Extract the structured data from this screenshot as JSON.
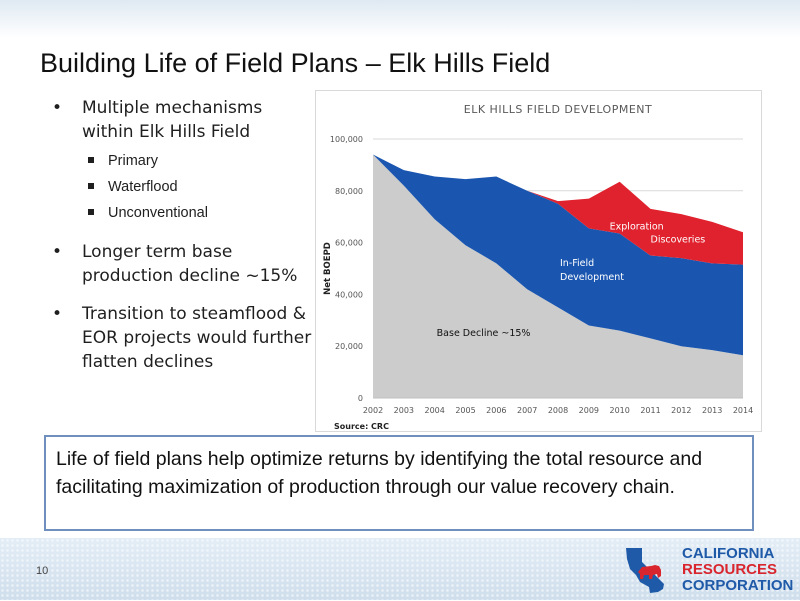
{
  "slide": {
    "title": "Building Life of Field Plans – Elk Hills Field",
    "page_number": "10"
  },
  "bullets": [
    {
      "text": "Multiple mechanisms within Elk Hills Field",
      "subitems": [
        "Primary",
        "Waterflood",
        "Unconventional"
      ]
    },
    {
      "text": "Longer term base production decline ~15%"
    },
    {
      "text": "Transition to steamflood & EOR projects would further flatten declines"
    }
  ],
  "callout": {
    "text": "Life of field plans help optimize returns by identifying the total resource and facilitating maximization of production through our value recovery chain."
  },
  "chart_data": {
    "type": "area",
    "title": "ELK HILLS FIELD DEVELOPMENT",
    "xlabel": "",
    "ylabel": "Net BOEPD",
    "source": "Source: CRC",
    "x": [
      "2002",
      "2003",
      "2004",
      "2005",
      "2006",
      "2007",
      "2008",
      "2009",
      "2010",
      "2011",
      "2012",
      "2013",
      "2014"
    ],
    "ylim": [
      0,
      100000
    ],
    "yticks": [
      "0",
      "20,000",
      "40,000",
      "60,000",
      "80,000",
      "100,000"
    ],
    "grid": true,
    "series": [
      {
        "name": "Base Decline ~15%",
        "color": "#cccccc",
        "values": [
          94000,
          82000,
          69000,
          59000,
          52000,
          42000,
          35000,
          28000,
          26000,
          23000,
          20000,
          18500,
          16500
        ]
      },
      {
        "name": "In-Field Development",
        "color": "#1a56b0",
        "values": [
          0,
          6000,
          16500,
          25500,
          33500,
          38000,
          40000,
          37500,
          37500,
          32000,
          34000,
          33500,
          35000
        ]
      },
      {
        "name": "Exploration Discoveries",
        "color": "#e0222e",
        "values": [
          0,
          0,
          0,
          0,
          0,
          0,
          1000,
          11500,
          20000,
          18000,
          17000,
          16000,
          12500
        ]
      }
    ]
  },
  "logo": {
    "line1": "CALIFORNIA",
    "line2": "RESOURCES",
    "line3": "CORPORATION",
    "red": "#d9262e",
    "blue": "#1f5aa8"
  }
}
